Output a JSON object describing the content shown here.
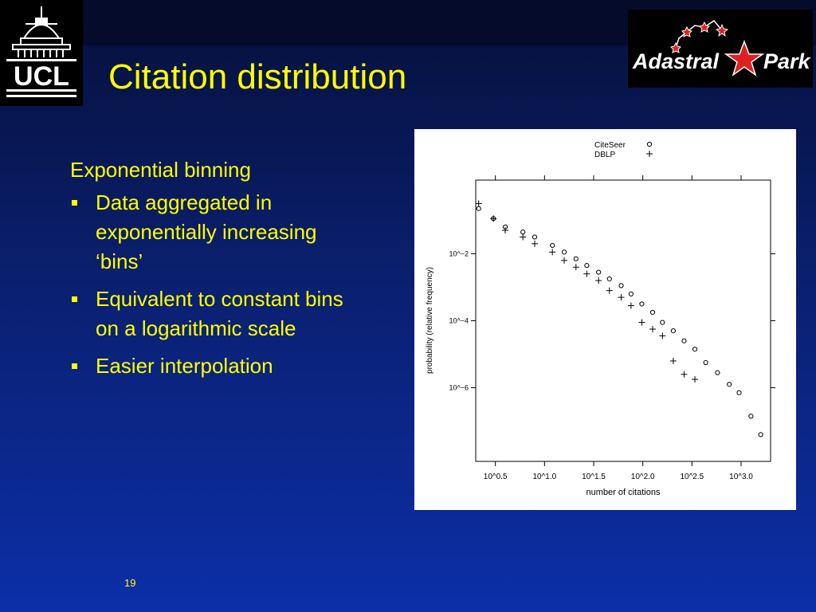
{
  "slide": {
    "title": "Citation distribution",
    "lead": "Exponential binning",
    "bullets": [
      "Data aggregated in exponentially increasing ‘bins’",
      "Equivalent to constant bins on a logarithmic scale",
      "Easier interpolation"
    ],
    "page_number": "19"
  },
  "logos": {
    "ucl_text": "UCL",
    "adastral_text_left": "Adastral",
    "adastral_text_right": "Park"
  },
  "colors": {
    "title": "#ffff00",
    "body_text": "#ffff00",
    "logo_red": "#e02020"
  },
  "chart_data": {
    "type": "scatter",
    "xlabel": "number of citations",
    "ylabel": "probability (relative frequency)",
    "x_scale": "log10",
    "y_scale": "log10",
    "xlim": [
      0.3,
      3.3
    ],
    "ylim": [
      -8.2,
      0.2
    ],
    "x_ticks": [
      {
        "value": 0.5,
        "label": "10^0.5"
      },
      {
        "value": 1.0,
        "label": "10^1.0"
      },
      {
        "value": 1.5,
        "label": "10^1.5"
      },
      {
        "value": 2.0,
        "label": "10^2.0"
      },
      {
        "value": 2.5,
        "label": "10^2.5"
      },
      {
        "value": 3.0,
        "label": "10^3.0"
      }
    ],
    "y_ticks": [
      {
        "value": -2,
        "label": "10^−2"
      },
      {
        "value": -4,
        "label": "10^−4"
      },
      {
        "value": -6,
        "label": "10^−6"
      }
    ],
    "legend_position": "top",
    "series": [
      {
        "name": "CiteSeer",
        "marker": "circle",
        "x": [
          0.33,
          0.48,
          0.6,
          0.78,
          0.9,
          1.08,
          1.2,
          1.32,
          1.43,
          1.55,
          1.66,
          1.78,
          1.88,
          1.99,
          2.1,
          2.2,
          2.31,
          2.42,
          2.53,
          2.64,
          2.76,
          2.88,
          2.98,
          3.1,
          3.2
        ],
        "y": [
          -0.65,
          -0.95,
          -1.2,
          -1.35,
          -1.5,
          -1.75,
          -1.95,
          -2.15,
          -2.35,
          -2.55,
          -2.75,
          -2.95,
          -3.2,
          -3.5,
          -3.75,
          -4.05,
          -4.3,
          -4.6,
          -4.85,
          -5.25,
          -5.55,
          -5.9,
          -6.15,
          -6.85,
          -7.4
        ]
      },
      {
        "name": "DBLP",
        "marker": "plus",
        "x": [
          0.33,
          0.48,
          0.6,
          0.78,
          0.9,
          1.08,
          1.2,
          1.32,
          1.43,
          1.55,
          1.66,
          1.78,
          1.88,
          1.99,
          2.1,
          2.2,
          2.31,
          2.42,
          2.53
        ],
        "y": [
          -0.5,
          -0.95,
          -1.3,
          -1.5,
          -1.7,
          -1.95,
          -2.2,
          -2.4,
          -2.6,
          -2.8,
          -3.1,
          -3.3,
          -3.55,
          -4.05,
          -4.25,
          -4.45,
          -5.2,
          -5.6,
          -5.75
        ]
      }
    ]
  }
}
